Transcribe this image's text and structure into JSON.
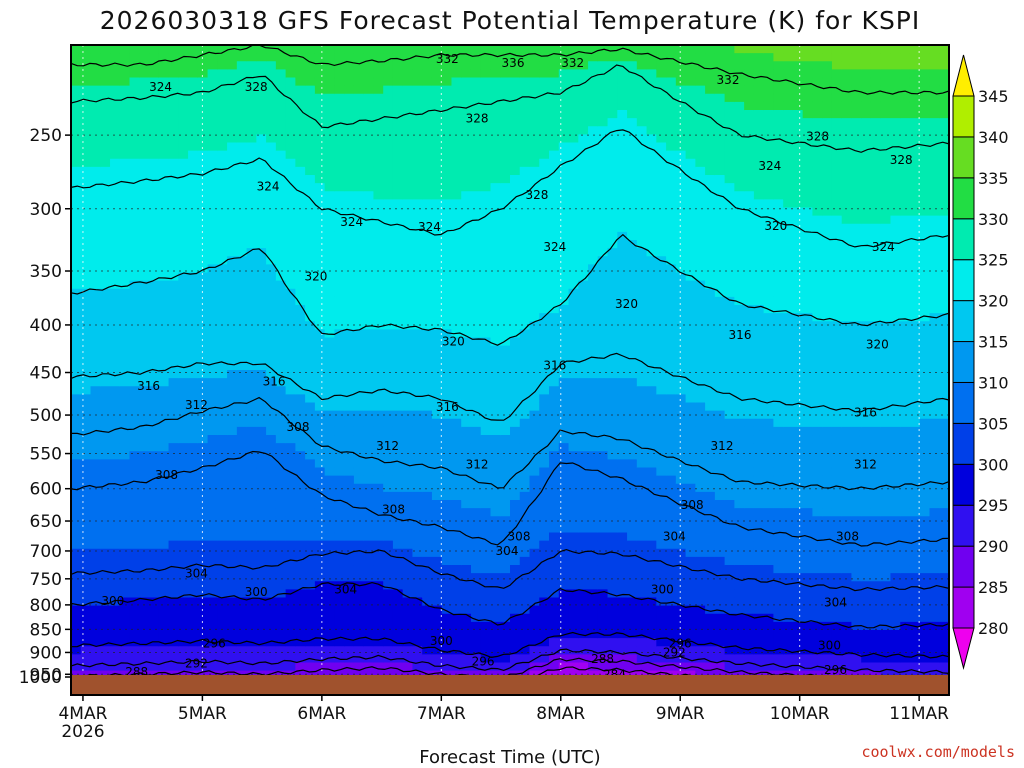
{
  "chart_data": {
    "type": "heatmap",
    "title": "2026030318 GFS Forecast Potential Temperature (K) for KSPI",
    "xlabel": "Forecast Time (UTC)",
    "ylabel": "",
    "units": "K",
    "credit": "coolwx.com/models",
    "y_axis": {
      "scale": "log-pressure",
      "inverted": true,
      "range": [
        1000,
        200
      ]
    },
    "y_ticks": [
      250,
      300,
      350,
      400,
      450,
      500,
      550,
      600,
      650,
      700,
      750,
      800,
      850,
      900,
      950,
      1000
    ],
    "x_ticks": [
      {
        "label": "4MAR",
        "sub": "2026",
        "day": 0
      },
      {
        "label": "5MAR",
        "sub": "",
        "day": 1
      },
      {
        "label": "6MAR",
        "sub": "",
        "day": 2
      },
      {
        "label": "7MAR",
        "sub": "",
        "day": 3
      },
      {
        "label": "8MAR",
        "sub": "",
        "day": 4
      },
      {
        "label": "9MAR",
        "sub": "",
        "day": 5
      },
      {
        "label": "10MAR",
        "sub": "",
        "day": 6
      },
      {
        "label": "11MAR",
        "sub": "",
        "day": 7
      }
    ],
    "x_range_days": [
      -0.1,
      7.25
    ],
    "colorbar": {
      "levels": [
        280,
        285,
        290,
        295,
        300,
        305,
        310,
        315,
        320,
        325,
        330,
        335,
        340,
        345
      ],
      "colors": [
        "#ee00ee",
        "#a000f0",
        "#7000f0",
        "#3010f0",
        "#0000dd",
        "#0040e8",
        "#0070f0",
        "#0098f0",
        "#00c8f0",
        "#00ecec",
        "#00ebb0",
        "#22dd44",
        "#66dd22",
        "#b0ee00",
        "#ffee00"
      ]
    },
    "contour_interval": 4,
    "isentropes": [
      {
        "theta": 284,
        "p": [
          980,
          975,
          970,
          975,
          972,
          960,
          965,
          975,
          935,
          940,
          965,
          975,
          980
        ]
      },
      {
        "theta": 288,
        "p": [
          955,
          950,
          945,
          950,
          940,
          935,
          950,
          960,
          915,
          920,
          945,
          960,
          965
        ]
      },
      {
        "theta": 292,
        "p": [
          930,
          925,
          920,
          925,
          915,
          910,
          930,
          940,
          895,
          900,
          925,
          940,
          945
        ]
      },
      {
        "theta": 296,
        "p": [
          885,
          880,
          875,
          880,
          870,
          870,
          895,
          910,
          860,
          860,
          890,
          905,
          910
        ]
      },
      {
        "theta": 300,
        "p": [
          800,
          790,
          780,
          790,
          760,
          760,
          810,
          840,
          770,
          780,
          820,
          845,
          840
        ]
      },
      {
        "theta": 304,
        "p": [
          740,
          735,
          725,
          730,
          705,
          700,
          740,
          770,
          700,
          705,
          750,
          770,
          765
        ]
      },
      {
        "theta": 308,
        "p": [
          600,
          590,
          570,
          545,
          610,
          640,
          660,
          690,
          560,
          585,
          660,
          690,
          680
        ]
      },
      {
        "theta": 312,
        "p": [
          525,
          515,
          495,
          480,
          540,
          560,
          570,
          600,
          520,
          530,
          590,
          600,
          590
        ]
      },
      {
        "theta": 316,
        "p": [
          455,
          450,
          440,
          440,
          480,
          470,
          480,
          510,
          440,
          430,
          480,
          495,
          480
        ]
      },
      {
        "theta": 320,
        "p": [
          370,
          360,
          350,
          330,
          410,
          400,
          405,
          420,
          380,
          320,
          380,
          400,
          390
        ]
      },
      {
        "theta": 324,
        "p": [
          285,
          280,
          275,
          265,
          300,
          310,
          320,
          300,
          270,
          245,
          300,
          330,
          320
        ]
      },
      {
        "theta": 328,
        "p": [
          230,
          228,
          225,
          215,
          245,
          240,
          235,
          230,
          225,
          210,
          250,
          260,
          255
        ]
      },
      {
        "theta": 332,
        "p": [
          210,
          210,
          205,
          200,
          210,
          208,
          205,
          205,
          205,
          202,
          215,
          225,
          225
        ]
      }
    ],
    "isentrope_days": [
      -0.1,
      0.5,
      1.0,
      1.5,
      2.0,
      2.5,
      3.0,
      3.5,
      4.0,
      4.5,
      5.5,
      6.5,
      7.25
    ],
    "contour_labels": [
      {
        "text": "324",
        "day": 0.65,
        "p": 222
      },
      {
        "text": "328",
        "day": 1.45,
        "p": 222
      },
      {
        "text": "332",
        "day": 3.05,
        "p": 207
      },
      {
        "text": "336",
        "day": 3.6,
        "p": 209
      },
      {
        "text": "332",
        "day": 4.1,
        "p": 209
      },
      {
        "text": "332",
        "day": 5.4,
        "p": 218
      },
      {
        "text": "328",
        "day": 3.3,
        "p": 240
      },
      {
        "text": "328",
        "day": 6.15,
        "p": 251
      },
      {
        "text": "324",
        "day": 5.75,
        "p": 270
      },
      {
        "text": "328",
        "day": 6.85,
        "p": 266
      },
      {
        "text": "324",
        "day": 1.55,
        "p": 284
      },
      {
        "text": "328",
        "day": 3.8,
        "p": 290
      },
      {
        "text": "324",
        "day": 2.25,
        "p": 310
      },
      {
        "text": "324",
        "day": 2.9,
        "p": 314
      },
      {
        "text": "324",
        "day": 3.95,
        "p": 330
      },
      {
        "text": "320",
        "day": 5.8,
        "p": 313
      },
      {
        "text": "324",
        "day": 6.7,
        "p": 330
      },
      {
        "text": "320",
        "day": 1.95,
        "p": 355
      },
      {
        "text": "320",
        "day": 4.55,
        "p": 380
      },
      {
        "text": "320",
        "day": 3.1,
        "p": 417
      },
      {
        "text": "316",
        "day": 5.5,
        "p": 410
      },
      {
        "text": "320",
        "day": 6.65,
        "p": 420
      },
      {
        "text": "316",
        "day": 0.55,
        "p": 465
      },
      {
        "text": "316",
        "day": 1.6,
        "p": 460
      },
      {
        "text": "316",
        "day": 3.95,
        "p": 442
      },
      {
        "text": "316",
        "day": 3.05,
        "p": 490
      },
      {
        "text": "316",
        "day": 6.55,
        "p": 497
      },
      {
        "text": "312",
        "day": 0.95,
        "p": 488
      },
      {
        "text": "308",
        "day": 1.8,
        "p": 515
      },
      {
        "text": "312",
        "day": 2.55,
        "p": 540
      },
      {
        "text": "312",
        "day": 3.3,
        "p": 565
      },
      {
        "text": "312",
        "day": 5.35,
        "p": 540
      },
      {
        "text": "312",
        "day": 6.55,
        "p": 565
      },
      {
        "text": "308",
        "day": 0.7,
        "p": 580
      },
      {
        "text": "308",
        "day": 2.6,
        "p": 632
      },
      {
        "text": "308",
        "day": 5.1,
        "p": 625
      },
      {
        "text": "308",
        "day": 3.65,
        "p": 675
      },
      {
        "text": "304",
        "day": 3.55,
        "p": 700
      },
      {
        "text": "304",
        "day": 4.95,
        "p": 675
      },
      {
        "text": "308",
        "day": 6.4,
        "p": 675
      },
      {
        "text": "304",
        "day": 0.95,
        "p": 740
      },
      {
        "text": "304",
        "day": 2.2,
        "p": 770
      },
      {
        "text": "300",
        "day": 0.25,
        "p": 792
      },
      {
        "text": "300",
        "day": 1.45,
        "p": 775
      },
      {
        "text": "300",
        "day": 4.85,
        "p": 770
      },
      {
        "text": "304",
        "day": 6.3,
        "p": 795
      },
      {
        "text": "300",
        "day": 3.0,
        "p": 875
      },
      {
        "text": "300",
        "day": 6.25,
        "p": 885
      },
      {
        "text": "296",
        "day": 1.1,
        "p": 880
      },
      {
        "text": "296",
        "day": 3.35,
        "p": 920
      },
      {
        "text": "296",
        "day": 5.0,
        "p": 880
      },
      {
        "text": "292",
        "day": 4.95,
        "p": 900
      },
      {
        "text": "296",
        "day": 6.3,
        "p": 940
      },
      {
        "text": "292",
        "day": 0.95,
        "p": 925
      },
      {
        "text": "292",
        "day": 2.55,
        "p": 970
      },
      {
        "text": "288",
        "day": 0.45,
        "p": 945
      },
      {
        "text": "288",
        "day": 4.35,
        "p": 915
      },
      {
        "text": "284",
        "day": 4.45,
        "p": 950
      }
    ],
    "ground_color": "#a0522d"
  }
}
